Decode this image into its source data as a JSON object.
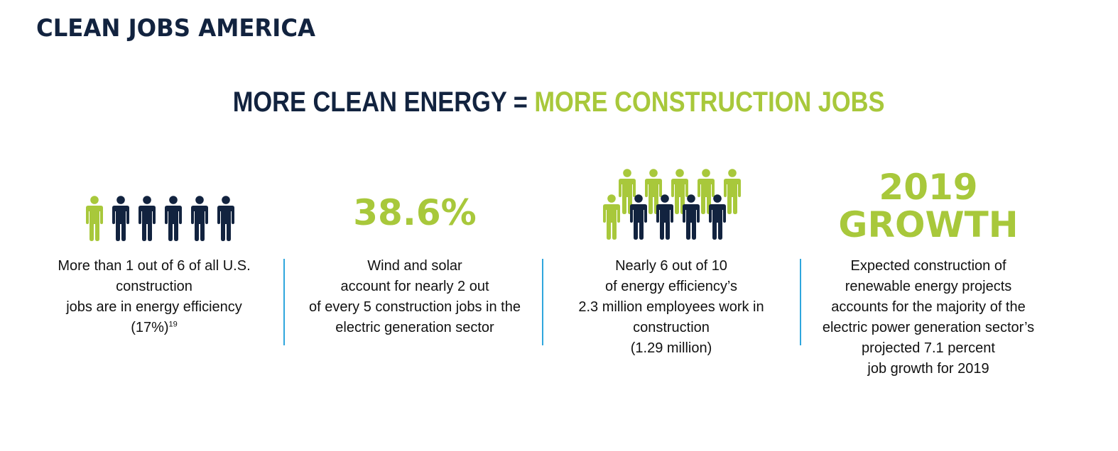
{
  "header": {
    "brand": "CLEAN JOBS AMERICA"
  },
  "headline": {
    "part1": "MORE CLEAN ENERGY = ",
    "part2": "MORE CONSTRUCTION JOBS"
  },
  "colors": {
    "dark_navy": "#12233f",
    "green": "#a8c83b",
    "divider_blue": "#2fa6dd"
  },
  "stats": [
    {
      "icon": "person-icon-row",
      "figure": "1 out of 6",
      "lines": [
        "More than 1 out of 6 of all U.S.",
        "construction",
        "jobs are in energy efficiency"
      ],
      "last_line": "(17%)",
      "footnote": "19"
    },
    {
      "big_number": "38.6%",
      "lines": [
        "Wind and solar",
        "account for nearly 2 out",
        "of every 5 construction jobs in the",
        "electric generation sector"
      ]
    },
    {
      "icon": "person-icon-group",
      "figure": "6 out of 10",
      "lines": [
        "Nearly 6 out of 10",
        "of energy efficiency’s",
        "2.3 million employees work in",
        "construction",
        "(1.29 million)"
      ]
    },
    {
      "big_number_line1": "2019",
      "big_number_line2": "GROWTH",
      "lines": [
        "Expected construction of",
        "renewable energy projects",
        "accounts for the majority of the",
        "electric power generation sector’s",
        "projected 7.1 percent",
        "job growth for 2019"
      ]
    }
  ]
}
